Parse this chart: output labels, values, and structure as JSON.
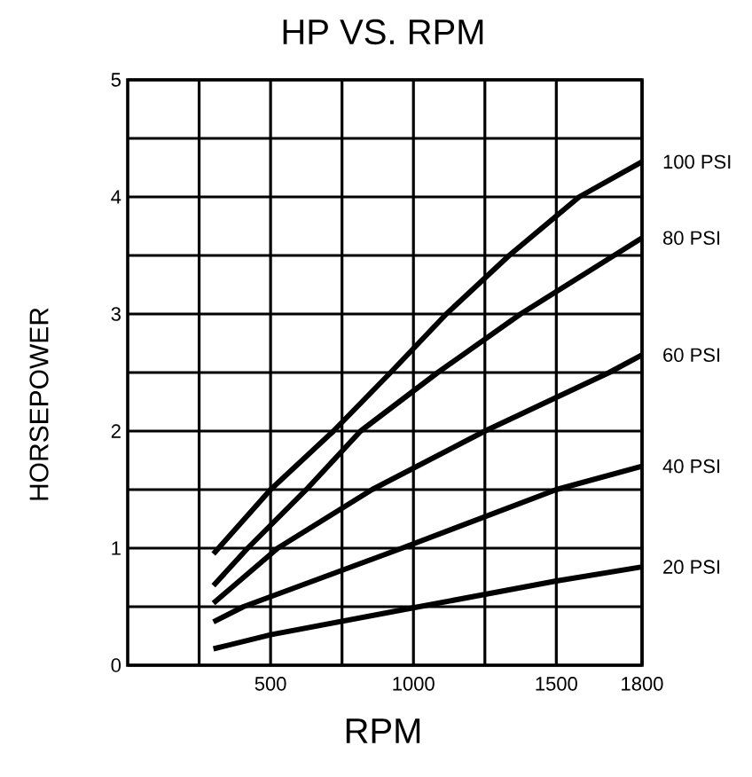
{
  "chart_data": {
    "type": "line",
    "title": "HP VS. RPM",
    "xlabel": "RPM",
    "ylabel": "HORSEPOWER",
    "xlim": [
      0,
      1800
    ],
    "ylim": [
      0,
      5
    ],
    "xticks": [
      {
        "value": 250,
        "label": null
      },
      500,
      {
        "value": 750,
        "label": null
      },
      1000,
      {
        "value": 1250,
        "label": null
      },
      1500,
      1800
    ],
    "yticks": [
      0,
      {
        "value": 0.5,
        "label": null
      },
      1,
      {
        "value": 1.5,
        "label": null
      },
      2,
      {
        "value": 2.5,
        "label": null
      },
      3,
      {
        "value": 3.5,
        "label": null
      },
      4,
      {
        "value": 4.5,
        "label": null
      },
      5
    ],
    "grid": true,
    "legend": false,
    "marker": "none",
    "line_style": "solid",
    "series": [
      {
        "name": "100 PSI",
        "color": "#000000",
        "x": [
          300,
          500,
          720,
          920,
          1115,
          1335,
          1580,
          1800
        ],
        "values": [
          0.95,
          1.5,
          2,
          2.5,
          3,
          3.5,
          4,
          4.3
        ]
      },
      {
        "name": "80 PSI",
        "color": "#000000",
        "x": [
          300,
          420,
          625,
          815,
          1085,
          1375,
          1800
        ],
        "values": [
          0.68,
          1,
          1.5,
          2,
          2.5,
          3,
          3.65
        ]
      },
      {
        "name": "60 PSI",
        "color": "#000000",
        "x": [
          300,
          525,
          855,
          1250,
          1685,
          1800
        ],
        "values": [
          0.53,
          1,
          1.5,
          2,
          2.5,
          2.65
        ]
      },
      {
        "name": "40 PSI",
        "color": "#000000",
        "x": [
          300,
          405,
          960,
          1500,
          1800
        ],
        "values": [
          0.37,
          0.5,
          1,
          1.5,
          1.7
        ]
      },
      {
        "name": "20 PSI",
        "color": "#000000",
        "x": [
          300,
          500,
          1020,
          1500,
          1800
        ],
        "values": [
          0.14,
          0.26,
          0.5,
          0.72,
          0.84
        ]
      }
    ]
  }
}
